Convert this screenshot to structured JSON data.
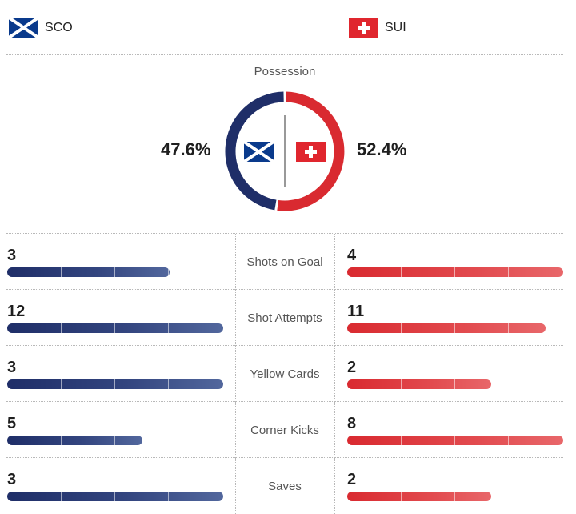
{
  "home": {
    "abbr": "SCO",
    "flag_icon": "scotland-flag-icon",
    "color": "#1f2e68",
    "possession": "47.6%",
    "possession_value": 47.6
  },
  "away": {
    "abbr": "SUI",
    "flag_icon": "switzerland-flag-icon",
    "color": "#d92a30",
    "possession": "52.4%",
    "possession_value": 52.4
  },
  "possession_title": "Possession",
  "bar_scale_max": 12,
  "stats": [
    {
      "label": "Shots on Goal",
      "home": 3,
      "away": 4,
      "home_fill": 0.75,
      "away_fill": 1.0
    },
    {
      "label": "Shot Attempts",
      "home": 12,
      "away": 11,
      "home_fill": 1.0,
      "away_fill": 0.917
    },
    {
      "label": "Yellow Cards",
      "home": 3,
      "away": 2,
      "home_fill": 1.0,
      "away_fill": 0.667
    },
    {
      "label": "Corner Kicks",
      "home": 5,
      "away": 8,
      "home_fill": 0.625,
      "away_fill": 1.0
    },
    {
      "label": "Saves",
      "home": 3,
      "away": 2,
      "home_fill": 1.0,
      "away_fill": 0.667
    }
  ]
}
